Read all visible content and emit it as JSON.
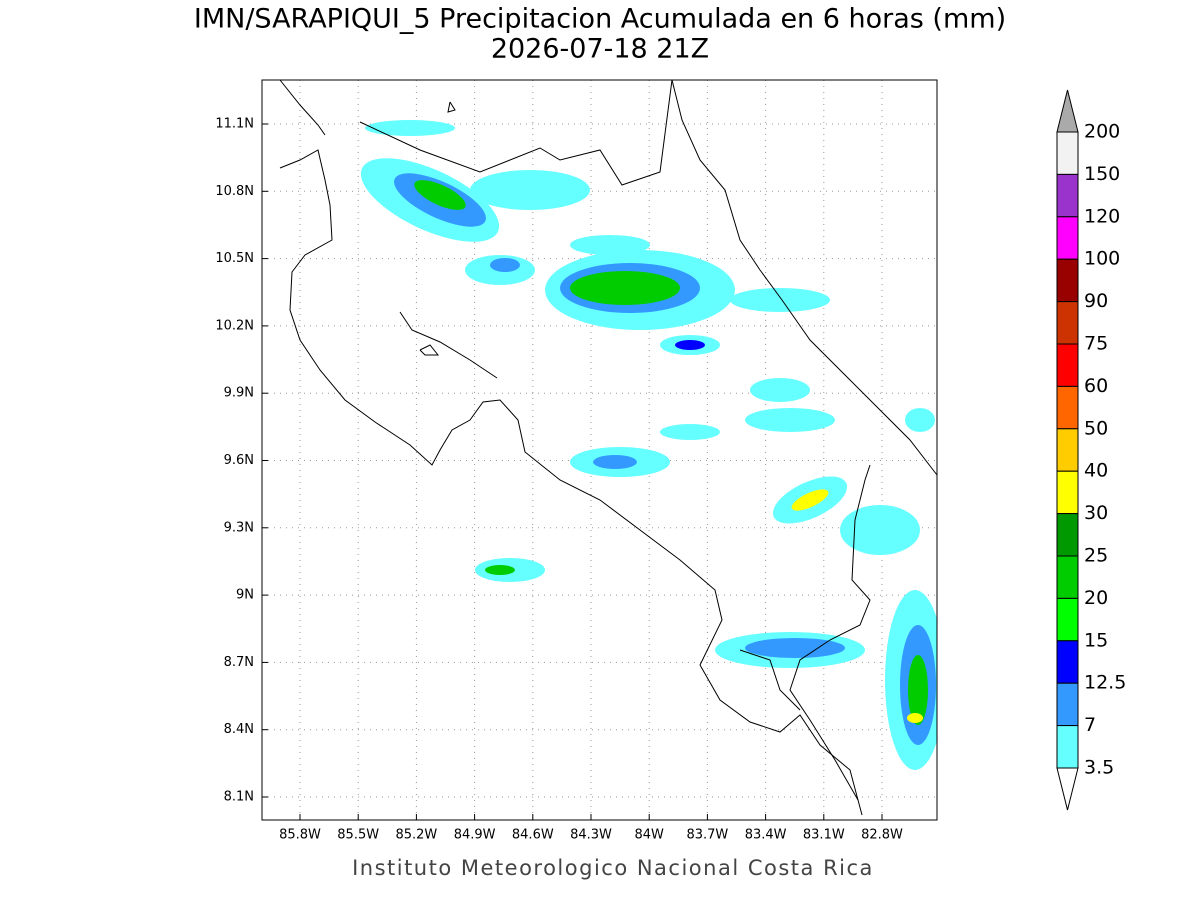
{
  "title": [
    "IMN/SARAPIQUI_5 Precipitacion Acumulada en 6 horas (mm)",
    "2026-07-18 21Z"
  ],
  "x_axis": {
    "ticks": [
      "85.8W",
      "85.5W",
      "85.2W",
      "84.9W",
      "84.6W",
      "84.3W",
      "84W",
      "83.7W",
      "83.4W",
      "83.1W",
      "82.8W"
    ]
  },
  "y_axis": {
    "ticks": [
      "11.1N",
      "10.8N",
      "10.5N",
      "10.2N",
      "9.9N",
      "9.6N",
      "9.3N",
      "9N",
      "8.7N",
      "8.4N",
      "8.1N"
    ]
  },
  "colorbar": {
    "labels": [
      "200",
      "150",
      "120",
      "100",
      "90",
      "75",
      "60",
      "50",
      "40",
      "30",
      "25",
      "20",
      "15",
      "12.5",
      "7",
      "3.5"
    ],
    "colors": [
      "#f2f2f2",
      "#9933cc",
      "#ff00ff",
      "#990000",
      "#cc3300",
      "#ff0000",
      "#ff6600",
      "#ffcc00",
      "#ffff00",
      "#009900",
      "#00cc00",
      "#00ff00",
      "#0000ff",
      "#3399ff",
      "#66ffff"
    ],
    "over_color": "#aaaaaa",
    "under_color": "#ffffff"
  },
  "footer": "Instituto Meteorologico Nacional Costa Rica"
}
